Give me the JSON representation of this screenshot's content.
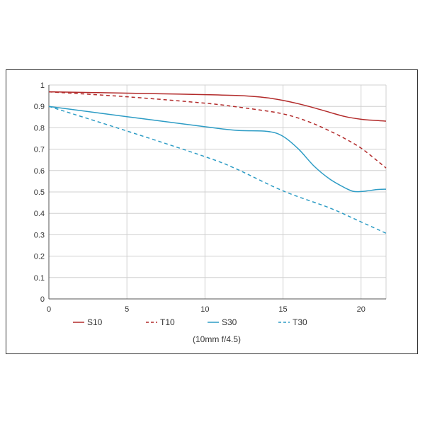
{
  "chart_data": {
    "type": "line",
    "title": "",
    "xlabel": "",
    "ylabel": "",
    "caption": "(10mm f/4.5)",
    "xlim": [
      0,
      21.6
    ],
    "ylim": [
      0,
      1
    ],
    "x_ticks": [
      "0",
      "5",
      "10",
      "15",
      "20"
    ],
    "y_ticks": [
      "0",
      "0.1",
      "0.2",
      "0.3",
      "0.4",
      "0.5",
      "0.6",
      "0.7",
      "0.8",
      "0.9",
      "1"
    ],
    "grid": true,
    "legend_position": "bottom",
    "series": [
      {
        "name": "S10",
        "color": "#b22a2a",
        "style": "solid",
        "x": [
          0,
          5,
          10,
          12,
          13,
          14,
          15,
          16,
          17,
          18,
          19,
          20,
          21,
          21.6
        ],
        "y": [
          0.968,
          0.962,
          0.955,
          0.951,
          0.947,
          0.94,
          0.928,
          0.912,
          0.893,
          0.872,
          0.852,
          0.84,
          0.834,
          0.831
        ]
      },
      {
        "name": "T10",
        "color": "#b22a2a",
        "style": "dashed",
        "x": [
          0,
          5,
          10,
          12,
          14,
          15,
          16,
          17,
          18,
          19,
          20,
          21,
          21.6
        ],
        "y": [
          0.968,
          0.945,
          0.915,
          0.898,
          0.878,
          0.865,
          0.845,
          0.818,
          0.785,
          0.748,
          0.705,
          0.648,
          0.612
        ]
      },
      {
        "name": "S30",
        "color": "#2d9cc5",
        "style": "solid",
        "x": [
          0,
          5,
          10,
          12,
          14,
          15,
          16,
          17,
          18,
          19,
          19.5,
          20,
          20.5,
          21,
          21.6
        ],
        "y": [
          0.9,
          0.852,
          0.805,
          0.788,
          0.783,
          0.76,
          0.7,
          0.62,
          0.56,
          0.518,
          0.503,
          0.502,
          0.506,
          0.511,
          0.513
        ]
      },
      {
        "name": "T30",
        "color": "#2d9cc5",
        "style": "dashed",
        "x": [
          0,
          5,
          10,
          12,
          15,
          18,
          20,
          21.6
        ],
        "y": [
          0.9,
          0.785,
          0.665,
          0.608,
          0.505,
          0.425,
          0.36,
          0.307
        ]
      }
    ]
  }
}
